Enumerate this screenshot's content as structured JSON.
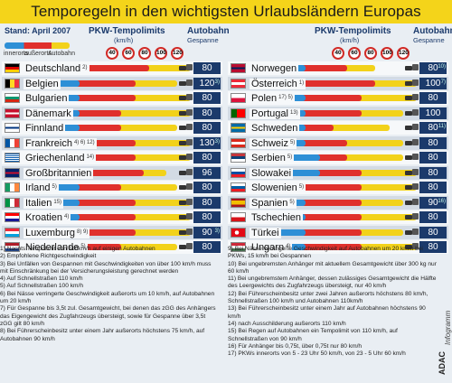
{
  "title": "Temporegeln in den wichtigsten Urlaubsländern Europas",
  "stand": "Stand: April 2007",
  "legend": {
    "innerorts": "innerorts",
    "ausserorts": "außerorts",
    "autobahn": "Autobahn"
  },
  "header": {
    "tempolimits": "PKW-Tempolimits",
    "kmh": "(km/h)",
    "autobahn": "Autobahn",
    "gespanne": "Gespanne"
  },
  "signs": [
    "40",
    "60",
    "80",
    "100",
    "120"
  ],
  "colors": {
    "innerorts": "#2d8fd6",
    "ausserorts": "#e0302c",
    "autobahn": "#f2d21a",
    "header": "#1b3a6b",
    "title_bg": "#f4d41a"
  },
  "chart_data": {
    "type": "bar",
    "x_ticks": [
      40,
      60,
      80,
      100,
      120
    ],
    "columns": [
      "PKW-Tempolimits (km/h)",
      "Autobahn Gespanne"
    ],
    "left": [
      {
        "country": "Deutschland",
        "fn": "2)",
        "innerorts": 50,
        "ausserorts": 100,
        "autobahn": 130,
        "gespanne": "80",
        "gfn": ""
      },
      {
        "country": "Belgien",
        "fn": "",
        "innerorts": 50,
        "ausserorts": 90,
        "autobahn": 120,
        "gespanne": "120",
        "gfn": "3)"
      },
      {
        "country": "Bulgarien",
        "fn": "",
        "innerorts": 50,
        "ausserorts": 90,
        "autobahn": 130,
        "gespanne": "80",
        "gfn": ""
      },
      {
        "country": "Dänemark",
        "fn": "",
        "innerorts": 50,
        "ausserorts": 80,
        "autobahn": 130,
        "gespanne": "80",
        "gfn": ""
      },
      {
        "country": "Finnland",
        "fn": "",
        "innerorts": 50,
        "ausserorts": 80,
        "autobahn": 120,
        "gespanne": "80",
        "gfn": ""
      },
      {
        "country": "Frankreich",
        "fn": "4) 6) 12)",
        "innerorts": 50,
        "ausserorts": 90,
        "autobahn": 130,
        "gespanne": "130",
        "gfn": "3)"
      },
      {
        "country": "Griechenland",
        "fn": "14)",
        "innerorts": 50,
        "ausserorts": 90,
        "autobahn": 130,
        "gespanne": "80",
        "gfn": ""
      },
      {
        "country": "Großbritannien",
        "fn": "",
        "innerorts": 48,
        "ausserorts": 96,
        "autobahn": 112,
        "gespanne": "96",
        "gfn": ""
      },
      {
        "country": "Irland",
        "fn": "5)",
        "innerorts": 50,
        "ausserorts": 80,
        "autobahn": 120,
        "gespanne": "80",
        "gfn": ""
      },
      {
        "country": "Italien",
        "fn": "15)",
        "innerorts": 50,
        "ausserorts": 90,
        "autobahn": 130,
        "gespanne": "80",
        "gfn": ""
      },
      {
        "country": "Kroatien",
        "fn": "4)",
        "innerorts": 50,
        "ausserorts": 90,
        "autobahn": 130,
        "gespanne": "80",
        "gfn": ""
      },
      {
        "country": "Luxemburg",
        "fn": "8) 9)",
        "innerorts": 50,
        "ausserorts": 90,
        "autobahn": 130,
        "gespanne": "90",
        "gfn": "3)"
      },
      {
        "country": "Niederlande",
        "fn": "5)",
        "innerorts": 50,
        "ausserorts": 80,
        "autobahn": 120,
        "gespanne": "80",
        "gfn": ""
      }
    ],
    "right": [
      {
        "country": "Norwegen",
        "fn": "",
        "innerorts": 50,
        "ausserorts": 80,
        "autobahn": 100,
        "gespanne": "80",
        "gfn": "10)"
      },
      {
        "country": "Österreich",
        "fn": "1)",
        "innerorts": 50,
        "ausserorts": 100,
        "autobahn": 130,
        "gespanne": "100",
        "gfn": "7)"
      },
      {
        "country": "Polen",
        "fn": "17) 5)",
        "innerorts": 50,
        "ausserorts": 90,
        "autobahn": 130,
        "gespanne": "80",
        "gfn": ""
      },
      {
        "country": "Portugal",
        "fn": "13)",
        "innerorts": 50,
        "ausserorts": 90,
        "autobahn": 120,
        "gespanne": "100",
        "gfn": ""
      },
      {
        "country": "Schweden",
        "fn": "",
        "innerorts": 50,
        "ausserorts": 70,
        "autobahn": 110,
        "gespanne": "80",
        "gfn": "11)"
      },
      {
        "country": "Schweiz",
        "fn": "5)",
        "innerorts": 50,
        "ausserorts": 80,
        "autobahn": 120,
        "gespanne": "80",
        "gfn": ""
      },
      {
        "country": "Serbien",
        "fn": "5)",
        "innerorts": 60,
        "ausserorts": 80,
        "autobahn": 120,
        "gespanne": "80",
        "gfn": ""
      },
      {
        "country": "Slowakei",
        "fn": "",
        "innerorts": 60,
        "ausserorts": 90,
        "autobahn": 130,
        "gespanne": "80",
        "gfn": ""
      },
      {
        "country": "Slowenien",
        "fn": "5)",
        "innerorts": 50,
        "ausserorts": 90,
        "autobahn": 130,
        "gespanne": "80",
        "gfn": ""
      },
      {
        "country": "Spanien",
        "fn": "5)",
        "innerorts": 50,
        "ausserorts": 90,
        "autobahn": 120,
        "gespanne": "90",
        "gfn": "16)"
      },
      {
        "country": "Tschechien",
        "fn": "",
        "innerorts": 50,
        "ausserorts": 90,
        "autobahn": 130,
        "gespanne": "80",
        "gfn": ""
      },
      {
        "country": "Türkei",
        "fn": "",
        "innerorts": 50,
        "ausserorts": 90,
        "autobahn": 120,
        "gespanne": "80",
        "gfn": ""
      },
      {
        "country": "Ungarn",
        "fn": "4)",
        "innerorts": 50,
        "ausserorts": 90,
        "autobahn": 130,
        "gespanne": "80",
        "gfn": ""
      }
    ]
  },
  "notes_left": [
    "1) Nachts Tempolimit von 110km/h auf einigen Autobahnen",
    "2) Empfohlene Richtgeschwindigkeit",
    "3) Bei Unfällen von Gespannen mit Geschwindigkeiten von über 100 km/h muss mit Einschränkung bei der Versicherungsleistung gerechnet werden",
    "4) Auf Schnellstraßen 110 km/h",
    "5) Auf Schnellstraßen 100 km/h",
    "6) Bei Nässe verringerte Geschwindigkeit außerorts um 10 km/h, auf Autobahnen um 20 km/h",
    "7) Für Gespanne bis 3,5t zul. Gesamtgewicht, bei denen das zGG des Anhängers das Eigengewicht des Zugfahrzeugs übersteigt, sowie für Gespanne über 3,5t zGG gilt 80 km/h",
    "8) Bei Führerscheinbesitz unter einem Jahr außerorts höchstens 75 km/h, auf Autobahnen 90 km/h"
  ],
  "notes_right": [
    "9) Bei Nässe verringerte Geschwindigkeit auf Autobahnen um 20 km/h bei PKWs, 15 km/h bei Gespannen",
    "10) Bei ungebremsten Anhänger mit aktuellem Gesamtgewicht über 300 kg nur 60 km/h",
    "11) Bei ungebremstem Anhänger, dessen zulässiges Gesamtgewicht die Hälfte des Leergewichts des Zugfahrzeugs übersteigt, nur 40 km/h",
    "12) Bei Führerscheinbesitz unter zwei Jahren außerorts höchstens 80 km/h, Schnellstraßen 100 km/h und Autobahnen 110km/h",
    "13) Bei Führerscheinbesitz unter einem Jahr auf Autobahnen höchstens 90 km/h",
    "14) nach Ausschilderung außerorts 110 km/h",
    "15) Bei Regen auf Autobahnen ein Tempolimit von 110 km/h, auf Schnellstraßen von 90 km/h",
    "16) Für Anhänger bis 0,75t, über 0,75t nur 80 km/h",
    "17) PKWs innerorts von 5 - 23 Uhr 50 km/h, von 23 - 5 Uhr 60 km/h"
  ],
  "brand": {
    "adac": "ADAC",
    "info": "Infogramm"
  }
}
